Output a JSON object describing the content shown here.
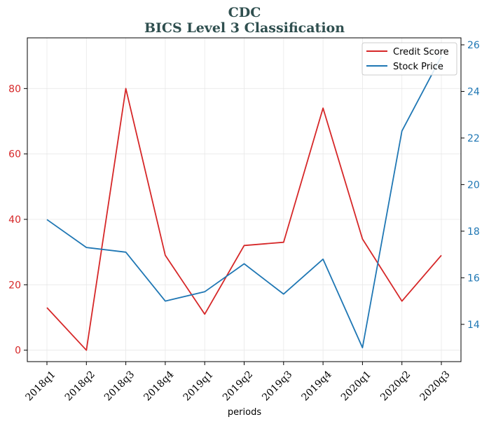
{
  "chart_data": {
    "type": "line",
    "title": "CDC",
    "subtitle": "BICS Level 3 Classification",
    "xlabel": "periods",
    "categories": [
      "2018q1",
      "2018q2",
      "2018q3",
      "2018q4",
      "2019q1",
      "2019q2",
      "2019q3",
      "2019q4",
      "2020q1",
      "2020q2",
      "2020q3"
    ],
    "series": [
      {
        "name": "Credit Score",
        "axis": "left",
        "color": "#d62728",
        "values": [
          13,
          0,
          80,
          29,
          11,
          32,
          33,
          74,
          34,
          15,
          29
        ]
      },
      {
        "name": "Stock Price",
        "axis": "right",
        "color": "#1f77b4",
        "values": [
          18.5,
          17.3,
          17.1,
          15.0,
          15.4,
          16.6,
          15.3,
          16.8,
          13.0,
          22.3,
          25.5
        ]
      }
    ],
    "y_left": {
      "ylim": [
        -3.5,
        95.5
      ],
      "ticks": [
        0,
        20,
        40,
        60,
        80
      ],
      "color": "#d62728"
    },
    "y_right": {
      "ylim": [
        12.4,
        26.3
      ],
      "ticks": [
        14,
        16,
        18,
        20,
        22,
        24,
        26
      ],
      "color": "#1f77b4"
    },
    "grid": true,
    "legend_position": "top-right"
  }
}
